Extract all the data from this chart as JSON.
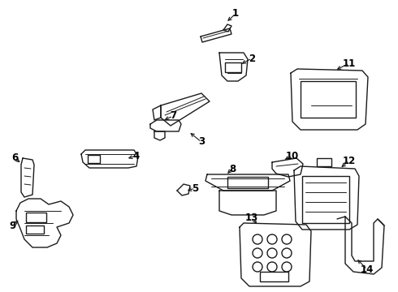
{
  "background_color": "#ffffff",
  "line_color": "#1a1a1a",
  "line_width": 1.0,
  "label_fontsize": 8.5,
  "label_color": "#000000",
  "fig_width": 4.9,
  "fig_height": 3.6,
  "dpi": 100
}
